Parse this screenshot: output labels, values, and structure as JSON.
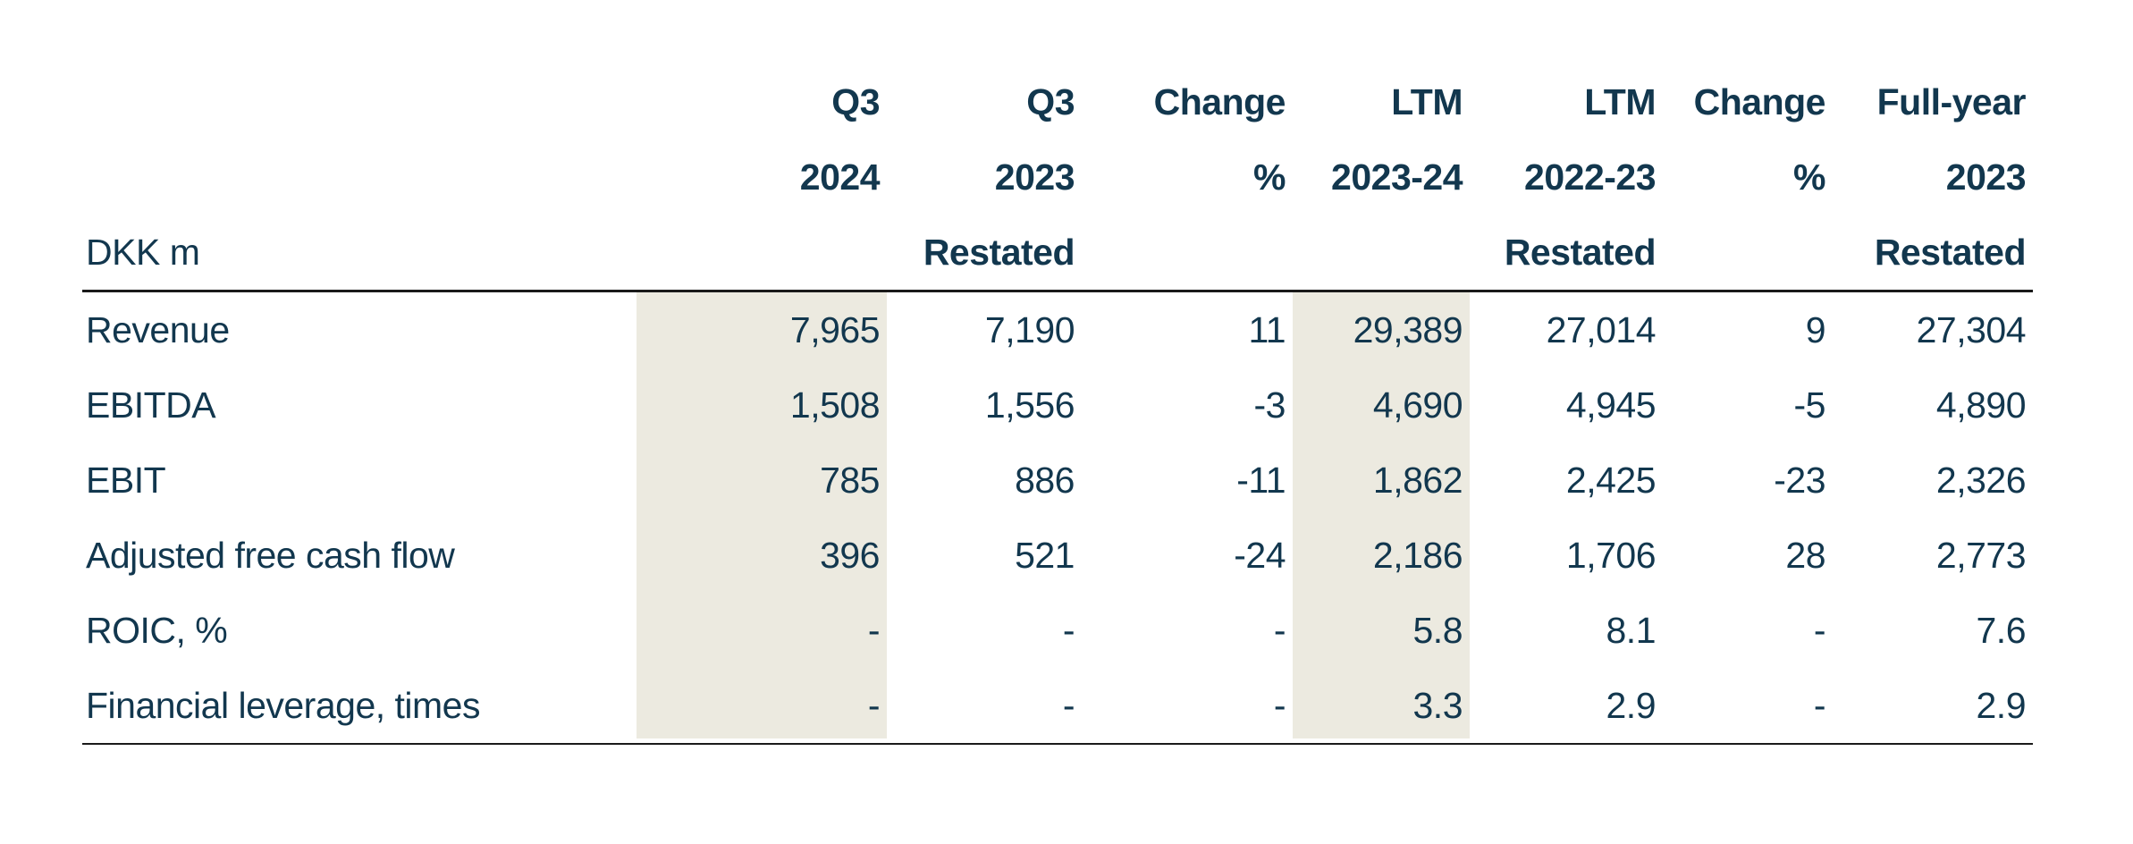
{
  "document": {
    "type": "financial-results-table",
    "unit_label": "DKK m"
  },
  "colors": {
    "text": "#12374E",
    "highlight_band": "#ECEAE0",
    "rule": "#1A1A1A",
    "background": "#FFFFFF"
  },
  "table": {
    "columns": [
      {
        "line1": "",
        "line2": "",
        "line3": "DKK m"
      },
      {
        "line1": "Q3",
        "line2": "2024",
        "line3": ""
      },
      {
        "line1": "Q3",
        "line2": "2023",
        "line3": "Restated"
      },
      {
        "line1": "Change",
        "line2": "%",
        "line3": ""
      },
      {
        "line1": "LTM",
        "line2": "2023-24",
        "line3": ""
      },
      {
        "line1": "LTM",
        "line2": "2022-23",
        "line3": "Restated"
      },
      {
        "line1": "Change",
        "line2": "%",
        "line3": ""
      },
      {
        "line1": "Full-year",
        "line2": "2023",
        "line3": "Restated"
      }
    ],
    "highlighted_columns": [
      "Q3 2024",
      "LTM 2023-24"
    ],
    "rows": [
      {
        "label": "Revenue",
        "values": [
          "7,965",
          "7,190",
          "11",
          "29,389",
          "27,014",
          "9",
          "27,304"
        ]
      },
      {
        "label": "EBITDA",
        "values": [
          "1,508",
          "1,556",
          "-3",
          "4,690",
          "4,945",
          "-5",
          "4,890"
        ]
      },
      {
        "label": "EBIT",
        "values": [
          "785",
          "886",
          "-11",
          "1,862",
          "2,425",
          "-23",
          "2,326"
        ]
      },
      {
        "label": "Adjusted free cash flow",
        "values": [
          "396",
          "521",
          "-24",
          "2,186",
          "1,706",
          "28",
          "2,773"
        ]
      },
      {
        "label": "ROIC, %",
        "values": [
          "-",
          "-",
          "-",
          "5.8",
          "8.1",
          "-",
          "7.6"
        ]
      },
      {
        "label": "Financial leverage, times",
        "values": [
          "-",
          "-",
          "-",
          "3.3",
          "2.9",
          "-",
          "2.9"
        ]
      }
    ]
  }
}
